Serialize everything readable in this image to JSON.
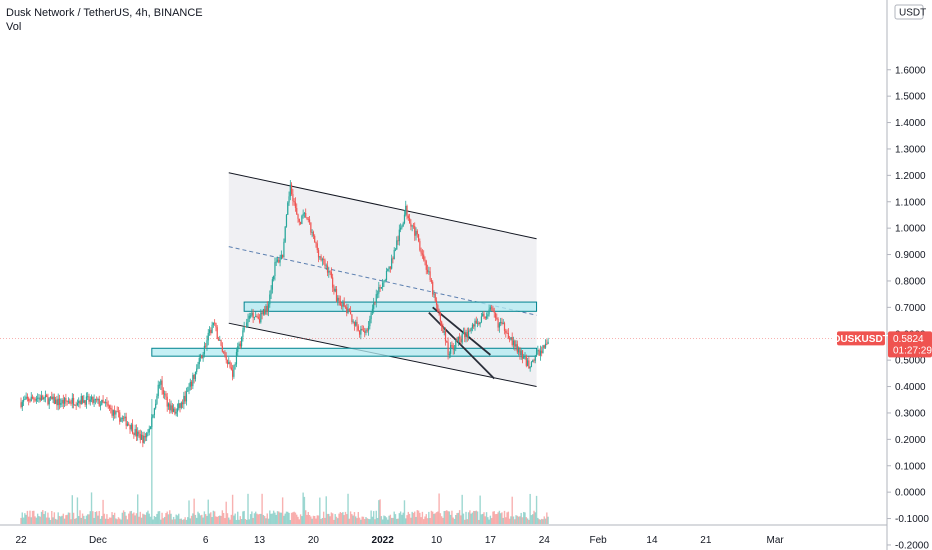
{
  "header": {
    "title": "Dusk Network / TetherUS, 4h, BINANCE",
    "volume_label": "Vol"
  },
  "price_axis": {
    "currency": "USDT",
    "current_symbol": "DUSKUSDT",
    "current_price": "0.5824",
    "countdown": "01:27:29"
  },
  "colors": {
    "up": "#26a69a",
    "down": "#ef5350",
    "channel_fill": "#f0f0f3",
    "zone_fill": "#b2ebf2",
    "zone_border": "#00838f",
    "dashed_line": "#5b7fb0",
    "price_tag": "#ef5350"
  },
  "chart_data": {
    "type": "candlestick",
    "title": "Dusk Network / TetherUS, 4h, BINANCE",
    "ylim": [
      -0.2,
      1.7
    ],
    "y_ticks": [
      "1.6000",
      "1.5000",
      "1.4000",
      "1.3000",
      "1.2000",
      "1.1000",
      "1.0000",
      "0.9000",
      "0.8000",
      "0.7000",
      "0.6000",
      "0.5000",
      "0.4000",
      "0.3000",
      "0.2000",
      "0.1000",
      "0.0000",
      "-0.1000",
      "-0.2000"
    ],
    "x_ticks": [
      "22",
      "Dec",
      "6",
      "13",
      "20",
      "2022",
      "10",
      "17",
      "24",
      "Feb",
      "14",
      "21",
      "Mar"
    ],
    "price_path": [
      [
        0,
        0.34
      ],
      [
        2,
        0.36
      ],
      [
        5,
        0.34
      ],
      [
        8,
        0.35
      ],
      [
        10,
        0.34
      ],
      [
        11,
        0.33
      ],
      [
        12,
        0.3
      ],
      [
        13,
        0.28
      ],
      [
        14,
        0.26
      ],
      [
        15,
        0.22
      ],
      [
        16,
        0.2
      ],
      [
        17,
        0.27
      ],
      [
        17.7,
        0.38
      ],
      [
        18,
        0.42
      ],
      [
        19,
        0.34
      ],
      [
        20,
        0.3
      ],
      [
        21,
        0.34
      ],
      [
        22,
        0.4
      ],
      [
        23,
        0.48
      ],
      [
        24,
        0.56
      ],
      [
        25,
        0.64
      ],
      [
        26,
        0.55
      ],
      [
        27,
        0.49
      ],
      [
        27.5,
        0.45
      ],
      [
        28,
        0.52
      ],
      [
        29,
        0.62
      ],
      [
        30,
        0.68
      ],
      [
        31,
        0.66
      ],
      [
        32,
        0.7
      ],
      [
        33,
        0.86
      ],
      [
        34,
        0.9
      ],
      [
        35,
        1.17
      ],
      [
        36,
        1.02
      ],
      [
        37,
        1.05
      ],
      [
        38,
        0.96
      ],
      [
        39,
        0.88
      ],
      [
        40,
        0.84
      ],
      [
        41,
        0.74
      ],
      [
        42,
        0.7
      ],
      [
        43,
        0.66
      ],
      [
        44,
        0.6
      ],
      [
        45,
        0.62
      ],
      [
        46,
        0.72
      ],
      [
        47,
        0.8
      ],
      [
        48,
        0.86
      ],
      [
        49,
        0.96
      ],
      [
        50,
        1.07
      ],
      [
        51,
        1.0
      ],
      [
        52,
        0.92
      ],
      [
        53,
        0.82
      ],
      [
        54,
        0.7
      ],
      [
        55,
        0.6
      ],
      [
        55.5,
        0.53
      ],
      [
        56,
        0.55
      ],
      [
        57,
        0.58
      ],
      [
        58,
        0.6
      ],
      [
        59,
        0.64
      ],
      [
        60,
        0.66
      ],
      [
        61,
        0.69
      ],
      [
        62,
        0.64
      ],
      [
        63,
        0.62
      ],
      [
        64,
        0.56
      ],
      [
        65,
        0.52
      ],
      [
        66,
        0.48
      ],
      [
        67,
        0.52
      ],
      [
        68,
        0.55
      ],
      [
        68.5,
        0.58
      ]
    ],
    "volume_spike_day": 17,
    "annotations": {
      "channel_upper": [
        [
          27,
          1.21
        ],
        [
          67,
          0.96
        ]
      ],
      "channel_lower": [
        [
          27,
          0.64
        ],
        [
          67,
          0.4
        ]
      ],
      "median_dashed": [
        [
          27,
          0.93
        ],
        [
          67,
          0.67
        ]
      ],
      "resistance_zone": [
        [
          29,
          0.685
        ],
        [
          67,
          0.72
        ]
      ],
      "support_zone": [
        [
          17,
          0.515
        ],
        [
          67,
          0.545
        ]
      ],
      "falling_wedge_upper": [
        [
          53.5,
          0.7
        ],
        [
          61,
          0.52
        ]
      ],
      "falling_wedge_lower": [
        [
          53,
          0.68
        ],
        [
          61.5,
          0.43
        ]
      ]
    }
  }
}
